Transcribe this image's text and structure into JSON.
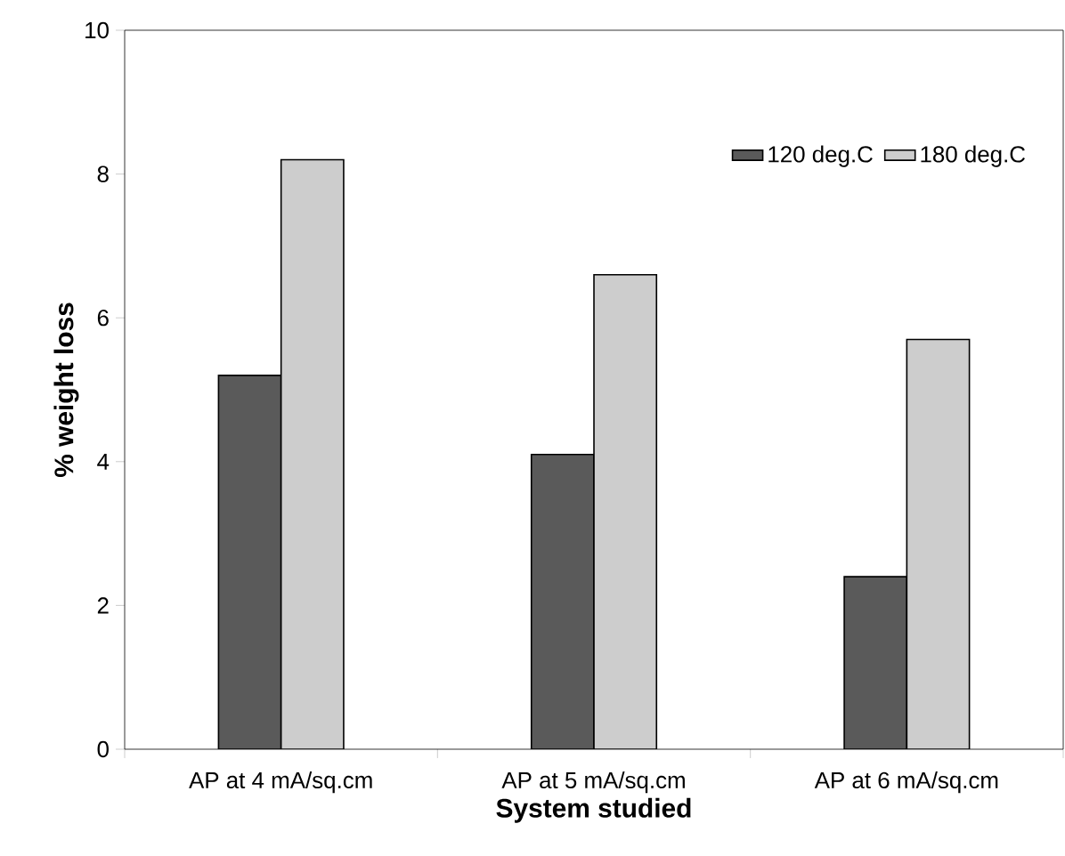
{
  "chart_data": {
    "type": "bar",
    "xlabel": "System studied",
    "ylabel": "% weight loss",
    "categories": [
      "AP at 4 mA/sq.cm",
      "AP at 5 mA/sq.cm",
      "AP at 6 mA/sq.cm"
    ],
    "series": [
      {
        "name": "120 deg.C",
        "color": "#5a5a5a",
        "values": [
          5.2,
          4.1,
          2.4
        ]
      },
      {
        "name": "180 deg.C",
        "color": "#cdcdcd",
        "values": [
          8.2,
          6.6,
          5.7
        ]
      }
    ],
    "ylim": [
      0,
      10
    ],
    "yticks": [
      0,
      2,
      4,
      6,
      8,
      10
    ],
    "grid": false,
    "legend": "top right"
  }
}
